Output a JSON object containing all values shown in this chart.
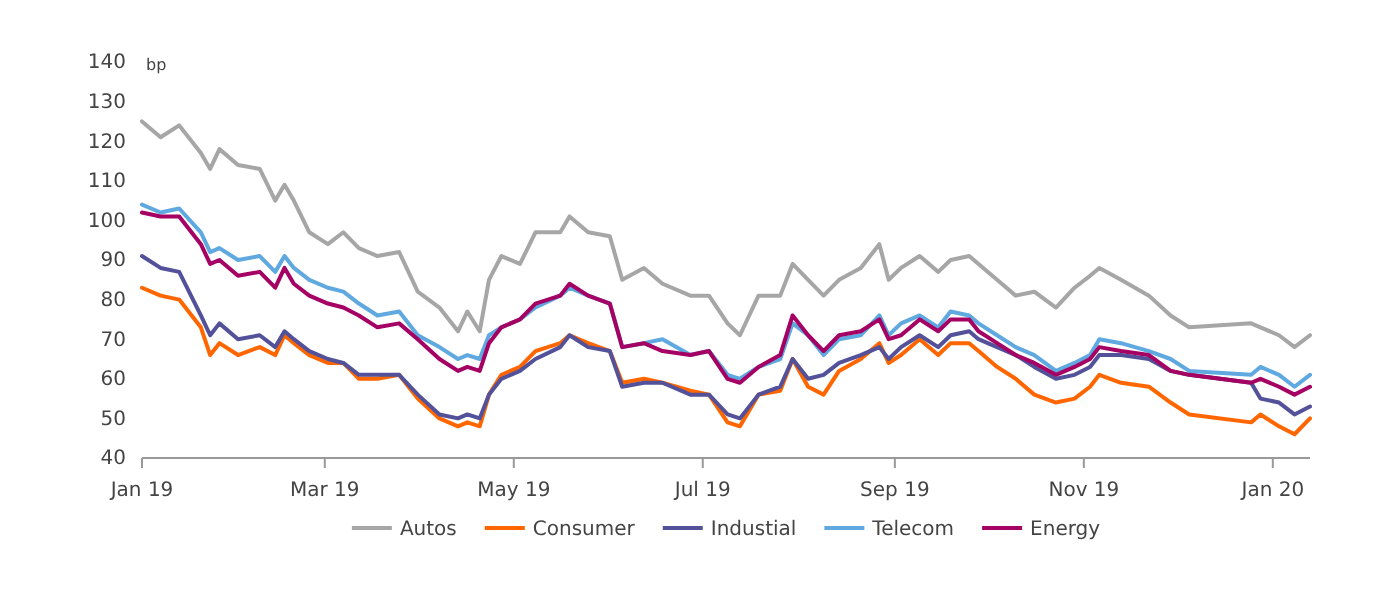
{
  "chart_data": {
    "type": "line",
    "ylabel": "bp",
    "legend": "bottom",
    "marker": "none",
    "line_style": "solid",
    "grid": false,
    "x": [
      "2019-01-01",
      "2019-01-07",
      "2019-01-13",
      "2019-01-20",
      "2019-01-23",
      "2019-01-26",
      "2019-02-01",
      "2019-02-08",
      "2019-02-13",
      "2019-02-16",
      "2019-02-19",
      "2019-02-24",
      "2019-03-02",
      "2019-03-07",
      "2019-03-12",
      "2019-03-18",
      "2019-03-25",
      "2019-03-31",
      "2019-04-07",
      "2019-04-13",
      "2019-04-16",
      "2019-04-20",
      "2019-04-23",
      "2019-04-27",
      "2019-05-03",
      "2019-05-08",
      "2019-05-16",
      "2019-05-19",
      "2019-05-25",
      "2019-06-01",
      "2019-06-05",
      "2019-06-12",
      "2019-06-18",
      "2019-06-27",
      "2019-07-03",
      "2019-07-09",
      "2019-07-13",
      "2019-07-19",
      "2019-07-26",
      "2019-07-30",
      "2019-08-04",
      "2019-08-09",
      "2019-08-14",
      "2019-08-21",
      "2019-08-27",
      "2019-08-30",
      "2019-09-03",
      "2019-09-09",
      "2019-09-15",
      "2019-09-19",
      "2019-09-25",
      "2019-09-28",
      "2019-10-04",
      "2019-10-10",
      "2019-10-16",
      "2019-10-23",
      "2019-10-29",
      "2019-11-03",
      "2019-11-06",
      "2019-11-13",
      "2019-11-22",
      "2019-11-29",
      "2019-12-05",
      "2019-12-25",
      "2019-12-28",
      "2020-01-03",
      "2020-01-08",
      "2020-01-13"
    ],
    "xlim": [
      "2019-01-01",
      "2020-01-13"
    ],
    "xticks": [
      {
        "value": "2019-01-01",
        "label": "Jan 19"
      },
      {
        "value": "2019-03-01",
        "label": "Mar 19"
      },
      {
        "value": "2019-05-01",
        "label": "May 19"
      },
      {
        "value": "2019-07-01",
        "label": "Jul 19"
      },
      {
        "value": "2019-09-01",
        "label": "Sep 19"
      },
      {
        "value": "2019-11-01",
        "label": "Nov 19"
      },
      {
        "value": "2020-01-01",
        "label": "Jan 20"
      }
    ],
    "ylim": [
      40,
      140
    ],
    "yticks": [
      40,
      50,
      60,
      70,
      80,
      90,
      100,
      110,
      120,
      130,
      140
    ],
    "series": [
      {
        "name": "Autos",
        "color": "#a6a6a6",
        "values": [
          125,
          121,
          124,
          117,
          113,
          118,
          114,
          113,
          105,
          109,
          105,
          97,
          94,
          97,
          93,
          91,
          92,
          82,
          78,
          72,
          77,
          72,
          85,
          91,
          89,
          97,
          97,
          101,
          97,
          96,
          85,
          88,
          84,
          81,
          81,
          74,
          71,
          81,
          81,
          89,
          85,
          81,
          85,
          88,
          94,
          85,
          88,
          91,
          87,
          90,
          91,
          89,
          85,
          81,
          82,
          78,
          83,
          86,
          88,
          85,
          81,
          76,
          73,
          74,
          73,
          71,
          68,
          71
        ]
      },
      {
        "name": "Consumer",
        "color": "#ff6600",
        "values": [
          83,
          81,
          80,
          73,
          66,
          69,
          66,
          68,
          66,
          71,
          69,
          66,
          64,
          64,
          60,
          60,
          61,
          55,
          50,
          48,
          49,
          48,
          56,
          61,
          63,
          67,
          69,
          71,
          69,
          67,
          59,
          60,
          59,
          57,
          56,
          49,
          48,
          56,
          57,
          65,
          58,
          56,
          62,
          65,
          69,
          64,
          66,
          70,
          66,
          69,
          69,
          67,
          63,
          60,
          56,
          54,
          55,
          58,
          61,
          59,
          58,
          54,
          51,
          49,
          51,
          48,
          46,
          50
        ]
      },
      {
        "name": "Industial",
        "color": "#525199",
        "values": [
          91,
          88,
          87,
          76,
          71,
          74,
          70,
          71,
          68,
          72,
          70,
          67,
          65,
          64,
          61,
          61,
          61,
          56,
          51,
          50,
          51,
          50,
          56,
          60,
          62,
          65,
          68,
          71,
          68,
          67,
          58,
          59,
          59,
          56,
          56,
          51,
          50,
          56,
          58,
          65,
          60,
          61,
          64,
          66,
          68,
          65,
          68,
          71,
          68,
          71,
          72,
          70,
          68,
          66,
          63,
          60,
          61,
          63,
          66,
          66,
          65,
          62,
          61,
          59,
          55,
          54,
          51,
          53
        ]
      },
      {
        "name": "Telecom",
        "color": "#5fa8e0",
        "values": [
          104,
          102,
          103,
          97,
          92,
          93,
          90,
          91,
          87,
          91,
          88,
          85,
          83,
          82,
          79,
          76,
          77,
          71,
          68,
          65,
          66,
          65,
          71,
          73,
          75,
          78,
          81,
          83,
          81,
          79,
          68,
          69,
          70,
          66,
          67,
          61,
          60,
          63,
          65,
          74,
          71,
          66,
          70,
          71,
          76,
          71,
          74,
          76,
          73,
          77,
          76,
          74,
          71,
          68,
          66,
          62,
          64,
          66,
          70,
          69,
          67,
          65,
          62,
          61,
          63,
          61,
          58,
          61
        ]
      },
      {
        "name": "Energy",
        "color": "#a50063",
        "values": [
          102,
          101,
          101,
          94,
          89,
          90,
          86,
          87,
          83,
          88,
          84,
          81,
          79,
          78,
          76,
          73,
          74,
          70,
          65,
          62,
          63,
          62,
          69,
          73,
          75,
          79,
          81,
          84,
          81,
          79,
          68,
          69,
          67,
          66,
          67,
          60,
          59,
          63,
          66,
          76,
          71,
          67,
          71,
          72,
          75,
          70,
          71,
          75,
          72,
          75,
          75,
          72,
          69,
          66,
          64,
          61,
          63,
          65,
          68,
          67,
          66,
          62,
          61,
          59,
          60,
          58,
          56,
          58
        ]
      }
    ]
  }
}
